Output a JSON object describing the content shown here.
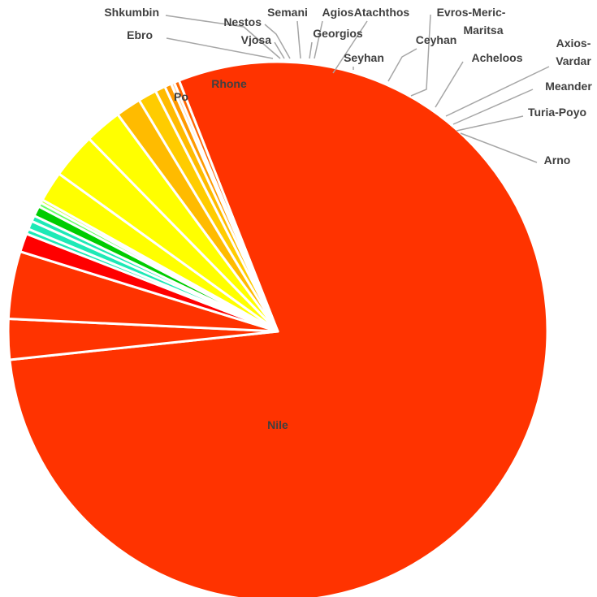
{
  "chart_data": {
    "type": "pie",
    "title": "",
    "slices": [
      {
        "label": "Nile",
        "value": 78.5,
        "color": "#ff3300"
      },
      {
        "label": "Po",
        "value": 2.4,
        "color": "#ff3300"
      },
      {
        "label": "Rhone",
        "value": 4.0,
        "color": "#ff3300"
      },
      {
        "label": "Ebro",
        "value": 1.1,
        "color": "#ff0000"
      },
      {
        "label": "Shkumbin",
        "value": 0.3,
        "color": "#1de9b6"
      },
      {
        "label": "Vjosa",
        "value": 0.5,
        "color": "#1de9b6"
      },
      {
        "label": "Nestos",
        "value": 0.35,
        "color": "#1de9b6"
      },
      {
        "label": "Semani",
        "value": 0.6,
        "color": "#00cc00"
      },
      {
        "label": "Georgios",
        "value": 0.25,
        "color": "#66ff66"
      },
      {
        "label": "Agios",
        "value": 0.2,
        "color": "#ccff33"
      },
      {
        "label": "Seyhan",
        "value": 1.8,
        "color": "#ffff00"
      },
      {
        "label": "Atachthos",
        "value": 2.7,
        "color": "#ffff00"
      },
      {
        "label": "Ceyhan",
        "value": 2.2,
        "color": "#ffff00"
      },
      {
        "label": "Evros-Meric-Maritsa",
        "value": 1.5,
        "color": "#ffbb00"
      },
      {
        "label": "Acheloos",
        "value": 1.1,
        "color": "#ffcc00"
      },
      {
        "label": "Axios-Vardar",
        "value": 0.6,
        "color": "#ffbb00"
      },
      {
        "label": "Meander",
        "value": 0.4,
        "color": "#ff9900"
      },
      {
        "label": "Turia-Poyo",
        "value": 0.2,
        "color": "#ffcc99"
      },
      {
        "label": "Arno",
        "value": 0.3,
        "color": "#ff6600"
      }
    ]
  }
}
